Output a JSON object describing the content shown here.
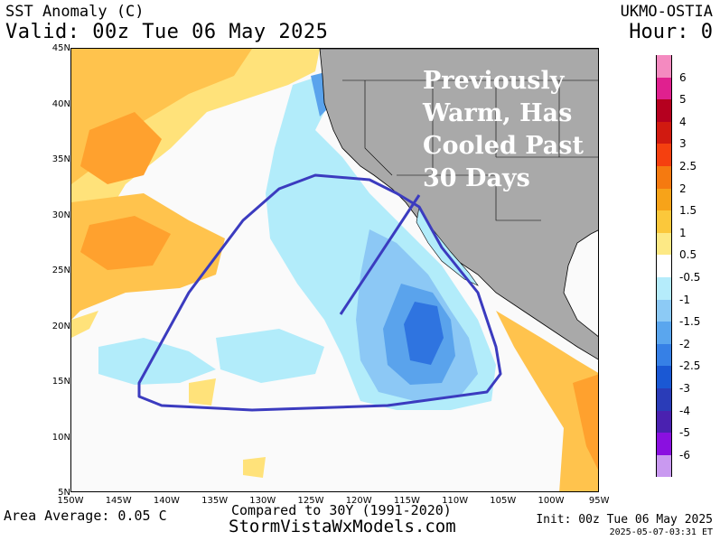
{
  "header": {
    "title": "SST Anomaly (C)",
    "valid": "Valid: 00z Tue 06 May 2025",
    "model": "UKMO-OSTIA",
    "hour": "Hour: 0"
  },
  "map": {
    "lat_labels": [
      "45N",
      "40N",
      "35N",
      "30N",
      "25N",
      "20N",
      "15N",
      "10N",
      "5N"
    ],
    "lon_labels": [
      "150W",
      "145W",
      "140W",
      "135W",
      "130W",
      "125W",
      "120W",
      "115W",
      "110W",
      "105W",
      "100W",
      "95W"
    ],
    "annotation_lines": [
      "Previously",
      "Warm, Has",
      "Cooled Past",
      "30 Days"
    ],
    "colors": {
      "land": "#a9a9a9",
      "outline": "#3b3bbf",
      "warm_1": "#ffe27a",
      "warm_2": "#ffc34d",
      "warm_3": "#ffa12e",
      "cool_1": "#b2ecfa",
      "cool_2": "#8cc8f5",
      "cool_3": "#5aa3ec",
      "cool_4": "#2f74e0"
    }
  },
  "legend": {
    "labels": [
      "6",
      "5",
      "4",
      "3",
      "2.5",
      "2",
      "1.5",
      "1",
      "0.5",
      "-0.5",
      "-1",
      "-1.5",
      "-2",
      "-2.5",
      "-3",
      "-4",
      "-5",
      "-6"
    ],
    "colors": [
      "#f48ac0",
      "#e0208f",
      "#b5001f",
      "#d11a10",
      "#f5400f",
      "#f57a10",
      "#f7a319",
      "#fbc83b",
      "#fde985",
      "#ffffff",
      "#b5ecfb",
      "#8ccaf5",
      "#5aa6ee",
      "#3680e6",
      "#1a58d4",
      "#2a3cb8",
      "#4a21b0",
      "#8a10e0",
      "#c999f0"
    ]
  },
  "footer": {
    "area_average": "Area Average: 0.05 C",
    "compared": "Compared to 30Y (1991-2020)",
    "website": "StormVistaWxModels.com",
    "init": "Init: 00z Tue 06 May 2025",
    "stamp": "2025-05-07-03:31 ET"
  }
}
